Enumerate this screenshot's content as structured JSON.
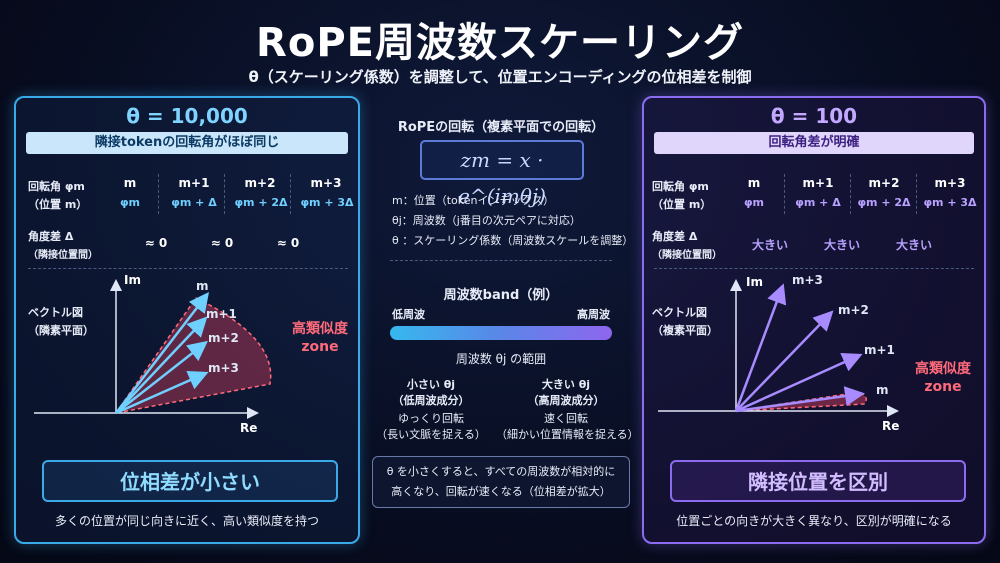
{
  "header": {
    "title": "RoPE周波数スケーリング",
    "subtitle": "θ（スケーリング係数）を調整して、位置エンコーディングの位相差を制御"
  },
  "left_panel": {
    "title": "θ = 10,000",
    "banner": "隣接tokenの回転角がほぼ同じ",
    "row_label_angle": "回転角 φm",
    "row_label_pos": "（位置 m）",
    "columns": [
      "m",
      "m+1",
      "m+2",
      "m+3"
    ],
    "phis": [
      "φm",
      "φm + Δ",
      "φm + 2Δ",
      "φm + 3Δ"
    ],
    "diff_label": "角度差 Δ",
    "diff_sub": "（隣接位置間）",
    "diffs": [
      "≈ 0",
      "≈ 0",
      "≈ 0"
    ],
    "vec_label": "ベクトル図",
    "vec_sub": "（隣素平面）",
    "axis_im": "Im",
    "axis_re": "Re",
    "vec_labels": [
      "m",
      "m+1",
      "m+2",
      "m+3"
    ],
    "zone_line1": "高類似度",
    "zone_line2": "zone",
    "result": "位相差が小さい",
    "note": "多くの位置が同じ向きに近く、高い類似度を持つ"
  },
  "middle": {
    "rot_title": "RoPEの回転（複素平面での回転）",
    "formula": "zm = x · e^(imθj)",
    "def_m": "m：位置（tokenインデックス）",
    "def_theta_j": "θj：周波数（j番目の次元ペアに対応）",
    "def_theta": "θ ：スケーリング係数（周波数スケールを調整）",
    "band_title": "周波数band（例）",
    "low": "低周波",
    "high": "高周波",
    "range": "周波数 θj の範囲",
    "small_title": "小さい θj",
    "small_sub": "（低周波成分）",
    "small_d1": "ゆっくり回転",
    "small_d2": "（長い文脈を捉える）",
    "large_title": "大きい θj",
    "large_sub": "（高周波成分）",
    "large_d1": "速く回転",
    "large_d2": "（細かい位置情報を捉える）",
    "note_line1": "θ を小さくすると、すべての周波数が相対的に",
    "note_line2": "高くなり、回転が速くなる（位相差が拡大）"
  },
  "right_panel": {
    "title": "θ = 100",
    "banner": "回転角差が明確",
    "row_label_angle": "回転角 φm",
    "row_label_pos": "（位置 m）",
    "columns": [
      "m",
      "m+1",
      "m+2",
      "m+3"
    ],
    "phis": [
      "φm",
      "φm + Δ",
      "φm + 2Δ",
      "φm + 3Δ"
    ],
    "diff_label": "角度差 Δ",
    "diff_sub": "（隣接位置間）",
    "diffs": [
      "大きい",
      "大きい",
      "大きい"
    ],
    "vec_label": "ベクトル図",
    "vec_sub": "（複素平面）",
    "axis_im": "Im",
    "axis_re": "Re",
    "vec_labels": [
      "m+3",
      "m+2",
      "m+1",
      "m"
    ],
    "zone_line1": "高類似度",
    "zone_line2": "zone",
    "result": "隣接位置を区別",
    "note": "位置ごとの向きが大きく異なり、区別が明確になる"
  },
  "colors": {
    "left_accent": "#3aa9e8",
    "right_accent": "#8b6cf0",
    "zone": "#ff6a7a"
  }
}
